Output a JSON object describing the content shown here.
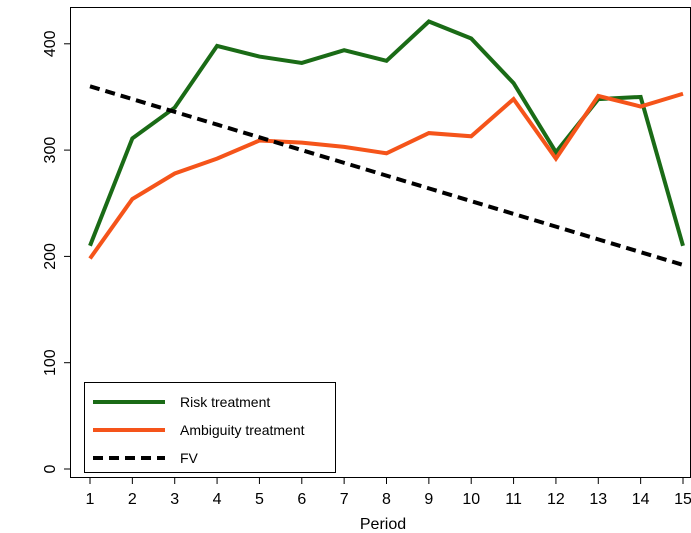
{
  "chart_data": {
    "type": "line",
    "xlabel": "Period",
    "ylabel": "",
    "x": [
      1,
      2,
      3,
      4,
      5,
      6,
      7,
      8,
      9,
      10,
      11,
      12,
      13,
      14,
      15
    ],
    "xticks": [
      "1",
      "2",
      "3",
      "4",
      "5",
      "6",
      "7",
      "8",
      "9",
      "10",
      "11",
      "12",
      "13",
      "14",
      "15"
    ],
    "yticks": [
      0,
      100,
      200,
      300,
      400
    ],
    "ylim": [
      0,
      426
    ],
    "xlim": [
      0.65,
      15
    ],
    "grid": false,
    "legend_position": "bottom-left",
    "series": [
      {
        "name": "Risk treatment",
        "color": "#1a6b16",
        "style": "solid",
        "values": [
          210,
          311,
          340,
          398,
          388,
          382,
          394,
          384,
          421,
          405,
          363,
          298,
          348,
          350,
          210
        ]
      },
      {
        "name": "Ambiguity treatment",
        "color": "#f5541a",
        "style": "solid",
        "values": [
          198,
          254,
          278,
          292,
          309,
          307,
          303,
          297,
          316,
          313,
          348,
          292,
          351,
          341,
          353
        ]
      },
      {
        "name": "FV",
        "color": "#000000",
        "style": "dashed",
        "values": [
          360,
          348,
          336,
          324,
          312,
          300,
          288,
          276,
          264,
          252,
          240,
          228,
          216,
          204,
          192
        ]
      }
    ]
  }
}
